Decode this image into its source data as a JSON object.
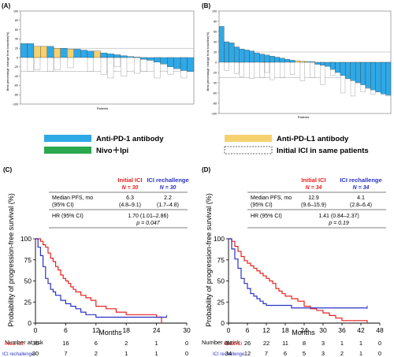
{
  "panel_labels": [
    "(A)",
    "(B)",
    "(C)",
    "(D)"
  ],
  "legend": {
    "items": [
      {
        "label": "Anti-PD-1 antibody",
        "color": "#2fa8e6"
      },
      {
        "label": "Anti-PD-L1 antibody",
        "color": "#f5d170"
      },
      {
        "label": "Nivo＋Ipi",
        "color": "#2aa84e"
      },
      {
        "label": "Initial ICI  in same patients",
        "color": "#ffffff"
      }
    ]
  },
  "chart_data": [
    {
      "type": "bar",
      "panel": "(A)",
      "ylabel": "Best percentage change from baseline(%)",
      "xlabel": "Patients",
      "ylim": [
        -100,
        100
      ],
      "yticks": [
        100,
        80,
        60,
        40,
        20,
        0,
        -20,
        -40,
        -60,
        -80,
        -100
      ],
      "reference_lines": [
        20,
        -30
      ],
      "series": [
        {
          "values": [
            30,
            30,
            24,
            24,
            24,
            20,
            20,
            18,
            18,
            16,
            14,
            14,
            10,
            8,
            6,
            4,
            2,
            0,
            -4,
            -6,
            -10,
            -14,
            -20,
            -24,
            -28,
            -30
          ],
          "types": [
            "pd1",
            "pd1",
            "pdl1",
            "pdl1",
            "pd1",
            "pdl1",
            "pd1",
            "pdl1",
            "pd1",
            "pd1",
            "pd1",
            "pdl1",
            "pd1",
            "pd1",
            "pd1",
            "pd1",
            "pd1",
            "pd1",
            "pd1",
            "pd1",
            "pd1",
            "pd1",
            "pd1",
            "pd1",
            "pd1",
            "pd1"
          ]
        },
        {
          "values": [
            0,
            -30,
            -26,
            0,
            -30,
            -26,
            0,
            -22,
            0,
            0,
            -30,
            0,
            -36,
            -44,
            -20,
            -40,
            0,
            -34,
            -30,
            0,
            -44,
            0,
            -36,
            0,
            -44,
            0
          ]
        }
      ]
    },
    {
      "type": "bar",
      "panel": "(B)",
      "ylabel": "Best percentage change from baseline(%)",
      "xlabel": "Patients",
      "ylim": [
        -100,
        100
      ],
      "yticks": [
        100,
        80,
        60,
        40,
        20,
        0,
        -20,
        -40,
        -60,
        -80,
        -100
      ],
      "reference_lines": [
        20,
        -30
      ],
      "series": [
        {
          "values": [
            70,
            40,
            38,
            30,
            26,
            24,
            22,
            18,
            16,
            14,
            12,
            10,
            8,
            6,
            4,
            3,
            2,
            1,
            0,
            -4,
            -6,
            -8,
            -14,
            -20,
            -26,
            -32,
            -36,
            -40,
            -44,
            -50,
            -54,
            -58,
            -62,
            -64
          ],
          "types": [
            "pd1",
            "pd1",
            "pd1",
            "pd1",
            "pd1",
            "pd1",
            "pd1",
            "pd1",
            "pd1",
            "pd1",
            "pd1",
            "pd1",
            "pd1",
            "pd1",
            "pd1",
            "pdl1",
            "pdl1",
            "nivo",
            "pd1",
            "pd1",
            "pd1",
            "pd1",
            "pd1",
            "pd1",
            "pd1",
            "pd1",
            "pd1",
            "pd1",
            "pd1",
            "pd1",
            "pd1",
            "pd1",
            "pd1",
            "pd1"
          ]
        },
        {
          "values": [
            0,
            -16,
            0,
            -22,
            -28,
            0,
            -32,
            0,
            -30,
            -20,
            -34,
            0,
            -30,
            0,
            -24,
            0,
            -36,
            0,
            -30,
            0,
            -44,
            0,
            -26,
            0,
            -60,
            0,
            -66,
            -40,
            -58,
            -52,
            -62,
            0,
            -56,
            -66
          ]
        }
      ]
    },
    {
      "type": "line",
      "panel": "(C)",
      "ylabel": "Probability of progression-free survival (%)",
      "xlabel": "Months",
      "xlim": [
        0,
        30
      ],
      "ylim": [
        0,
        100
      ],
      "xticks": [
        0,
        6,
        12,
        18,
        24,
        30
      ],
      "yticks": [
        0,
        25,
        50,
        75,
        100
      ],
      "table": {
        "col_initial": "Initial ICI",
        "col_initial_n": "N = 30",
        "col_rechallenge": "ICI rechallenge",
        "col_rechallenge_n": "N = 30",
        "row1_label": "Median PFS, mo",
        "row1_label2": "(95% CI)",
        "row1_initial": "6.3",
        "row1_initial_ci": "(4.8–9.1)",
        "row1_rechallenge": "2.2",
        "row1_rechallenge_ci": "(1.7–4.8)",
        "row2_label": "HR (95% CI)",
        "row2_value": "1.70 (1.01–2.86)",
        "row2_p": "p = 0.047"
      },
      "series": [
        {
          "name": "Initial ICI",
          "color": "#e8211e",
          "x": [
            0,
            1,
            1.5,
            2,
            2.5,
            3,
            3.5,
            4,
            4.5,
            5,
            5.5,
            6,
            6.5,
            7,
            7.5,
            8,
            9,
            10,
            11,
            12,
            14,
            16,
            18,
            20,
            22,
            24,
            25
          ],
          "y": [
            100,
            97,
            93,
            90,
            83,
            77,
            73,
            67,
            63,
            57,
            53,
            50,
            47,
            43,
            40,
            37,
            33,
            30,
            27,
            20,
            17,
            13,
            10,
            10,
            10,
            7,
            0
          ]
        },
        {
          "name": "ICI rechallenge",
          "color": "#2933c4",
          "x": [
            0,
            0.5,
            1,
            1.5,
            2,
            2.5,
            3,
            3.5,
            4,
            5,
            6,
            7,
            8,
            9,
            10,
            12,
            14,
            16,
            18,
            26
          ],
          "y": [
            100,
            90,
            80,
            67,
            53,
            47,
            40,
            37,
            33,
            27,
            23,
            20,
            17,
            13,
            10,
            7,
            7,
            7,
            7,
            7
          ]
        }
      ],
      "risk_table": {
        "title": "Number at risk",
        "x": [
          0,
          6,
          12,
          18,
          24,
          30
        ],
        "rows": [
          {
            "name": "Initial ICI",
            "color": "#e8211e",
            "values": [
              "30",
              "16",
              "6",
              "2",
              "1",
              "0"
            ]
          },
          {
            "name": "ICI rechallenge",
            "color": "#2933c4",
            "values": [
              "30",
              "7",
              "2",
              "1",
              "1",
              "0"
            ]
          }
        ]
      }
    },
    {
      "type": "line",
      "panel": "(D)",
      "ylabel": "Probability of progression-free survival (%)",
      "xlabel": "Months",
      "xlim": [
        0,
        48
      ],
      "ylim": [
        0,
        100
      ],
      "xticks": [
        0,
        6,
        12,
        18,
        24,
        30,
        36,
        42,
        48
      ],
      "yticks": [
        0,
        25,
        50,
        75,
        100
      ],
      "table": {
        "col_initial": "Initial ICI",
        "col_initial_n": "N = 34",
        "col_rechallenge": "ICI rechallenge",
        "col_rechallenge_n": "N = 34",
        "row1_label": "Median PFS, mo",
        "row1_label2": "(95% CI)",
        "row1_initial": "12.9",
        "row1_initial_ci": "(9.6–15.9)",
        "row1_rechallenge": "4.1",
        "row1_rechallenge_ci": "(2.8–6.4)",
        "row2_label": "HR (95% CI)",
        "row2_value": "1.41 (0.84–2.37)",
        "row2_p": "p = 0.19"
      },
      "series": [
        {
          "name": "Initial ICI",
          "color": "#e8211e",
          "x": [
            0,
            1,
            2,
            3,
            4,
            5,
            6,
            7,
            8,
            9,
            10,
            11,
            12,
            13,
            14,
            15,
            16,
            17,
            18,
            20,
            22,
            24,
            26,
            28,
            30,
            32,
            34,
            36,
            38,
            44
          ],
          "y": [
            100,
            97,
            91,
            85,
            79,
            74,
            71,
            68,
            65,
            62,
            59,
            56,
            53,
            50,
            47,
            41,
            38,
            35,
            32,
            29,
            26,
            20,
            17,
            15,
            12,
            9,
            6,
            3,
            3,
            0
          ]
        },
        {
          "name": "ICI rechallenge",
          "color": "#2933c4",
          "x": [
            0,
            1,
            2,
            3,
            4,
            5,
            6,
            7,
            8,
            9,
            10,
            11,
            12,
            14,
            16,
            18,
            20,
            22,
            24,
            44
          ],
          "y": [
            100,
            88,
            76,
            65,
            53,
            47,
            41,
            35,
            32,
            29,
            26,
            23,
            21,
            21,
            21,
            21,
            18,
            18,
            18,
            18
          ]
        }
      ],
      "risk_table": {
        "title": "Number at risk",
        "x": [
          0,
          6,
          12,
          18,
          24,
          30,
          36,
          42,
          48
        ],
        "rows": [
          {
            "name": "Initial ICI",
            "color": "#e8211e",
            "values": [
              "34",
              "26",
              "22",
              "11",
              "8",
              "3",
              "1",
              "1",
              "0"
            ]
          },
          {
            "name": "ICI rechallenge",
            "color": "#2933c4",
            "values": [
              "34",
              "12",
              "7",
              "6",
              "5",
              "3",
              "2",
              "1",
              "0"
            ]
          }
        ]
      }
    }
  ]
}
